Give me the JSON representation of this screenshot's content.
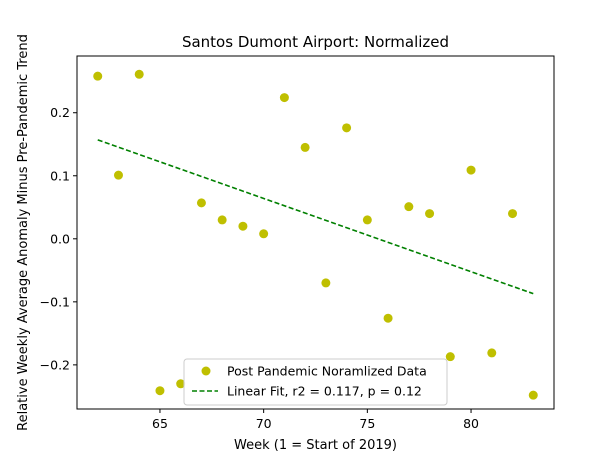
{
  "chart_data": {
    "type": "scatter",
    "title": "Santos Dumont Airport: Normalized",
    "xlabel": "Week (1 = Start of 2019)",
    "ylabel": "Relative Weekly Average Anomaly Minus Pre-Pandemic Trend",
    "xlim": [
      61.0,
      84.0
    ],
    "ylim": [
      -0.27,
      0.29
    ],
    "xticks": [
      65,
      70,
      75,
      80
    ],
    "yticks": [
      -0.2,
      -0.1,
      0.0,
      0.1,
      0.2
    ],
    "xtick_labels": [
      "65",
      "70",
      "75",
      "80"
    ],
    "ytick_labels": [
      "−0.2",
      "−0.1",
      "0.0",
      "0.1",
      "0.2"
    ],
    "grid": false,
    "legend_position": "bottom-center",
    "series": [
      {
        "name": "Post Pandemic Noramlized Data",
        "kind": "scatter",
        "color": "#bfbf00",
        "points": [
          {
            "x": 62,
            "y": 0.258
          },
          {
            "x": 63,
            "y": 0.101
          },
          {
            "x": 64,
            "y": 0.261
          },
          {
            "x": 65,
            "y": -0.241
          },
          {
            "x": 66,
            "y": -0.23
          },
          {
            "x": 67,
            "y": 0.057
          },
          {
            "x": 68,
            "y": 0.03
          },
          {
            "x": 69,
            "y": 0.02
          },
          {
            "x": 70,
            "y": 0.008
          },
          {
            "x": 71,
            "y": 0.224
          },
          {
            "x": 72,
            "y": 0.145
          },
          {
            "x": 73,
            "y": -0.07
          },
          {
            "x": 74,
            "y": 0.176
          },
          {
            "x": 75,
            "y": 0.03
          },
          {
            "x": 76,
            "y": -0.126
          },
          {
            "x": 77,
            "y": 0.051
          },
          {
            "x": 78,
            "y": 0.04
          },
          {
            "x": 79,
            "y": -0.187
          },
          {
            "x": 80,
            "y": 0.109
          },
          {
            "x": 81,
            "y": -0.181
          },
          {
            "x": 82,
            "y": 0.04
          },
          {
            "x": 83,
            "y": -0.248
          }
        ]
      },
      {
        "name": "Linear Fit, r2 = 0.117, p = 0.12",
        "kind": "line",
        "style": "dashed",
        "color": "#008000",
        "points": [
          {
            "x": 62,
            "y": 0.157
          },
          {
            "x": 83,
            "y": -0.087
          }
        ]
      }
    ]
  }
}
